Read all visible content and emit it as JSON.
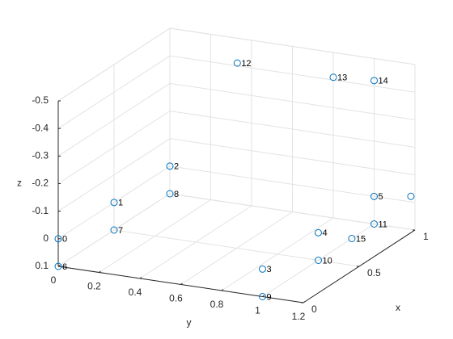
{
  "chart_data": {
    "type": "scatter3",
    "x": [
      0,
      0.5,
      1,
      0,
      0.5,
      1,
      0,
      0.5,
      1,
      0,
      0.5,
      1,
      1,
      1,
      1,
      0.8,
      1
    ],
    "y": [
      0,
      0,
      0,
      1,
      1,
      1,
      0,
      0,
      0,
      1,
      1,
      1,
      0.33,
      0.8,
      1,
      1,
      1.18
    ],
    "z": [
      0,
      0,
      0,
      0,
      0,
      0,
      0.1,
      0.1,
      0.1,
      0.1,
      0.1,
      0.1,
      -0.41,
      -0.41,
      -0.42,
      0.1,
      -0.02
    ],
    "labels": [
      "0",
      "1",
      "2",
      "3",
      "4",
      "5",
      "6",
      "7",
      "8",
      "9",
      "10",
      "11",
      "12",
      "13",
      "14",
      "15",
      null
    ],
    "color": "#0072bd",
    "xlabel": "x",
    "ylabel": "y",
    "zlabel": "z",
    "xlim": [
      0,
      1
    ],
    "ylim": [
      0,
      1.2
    ],
    "zlim": [
      -0.5,
      0.1
    ],
    "zdir": "reverse",
    "xticks": [
      0,
      0.5,
      1
    ],
    "yticks": [
      0,
      0.2,
      0.4,
      0.6,
      0.8,
      1,
      1.2
    ],
    "zticks": [
      -0.5,
      -0.4,
      -0.3,
      -0.2,
      -0.1,
      0,
      0.1
    ],
    "grid": true
  }
}
